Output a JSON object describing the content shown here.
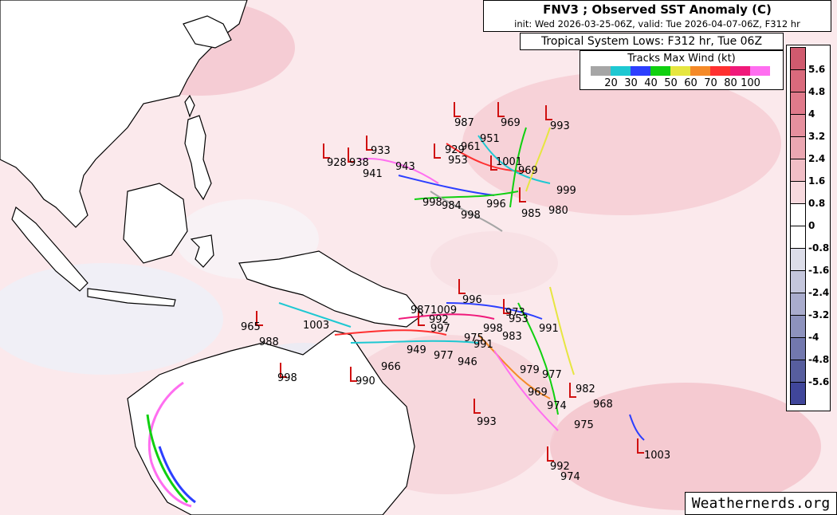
{
  "title": {
    "main": "FNV3 ; Observed SST Anomaly (C)",
    "sub": "init: Wed 2026-03-25-06Z, valid: Tue 2026-04-07-06Z, F312 hr"
  },
  "subtitle": "Tropical System Lows: F312 hr, Tue 06Z",
  "wind_legend": {
    "title": "Tracks Max Wind (kt)",
    "labels": [
      "20",
      "30",
      "40",
      "50",
      "60",
      "70",
      "80",
      "100"
    ],
    "colors": [
      "#a6a6a6",
      "#1ec8d2",
      "#2c3fff",
      "#10d010",
      "#e6e640",
      "#f58a28",
      "#ff3030",
      "#f0197a",
      "#ff6ef0"
    ]
  },
  "colorbar": {
    "labels": [
      "5.6",
      "4.8",
      "4",
      "3.2",
      "2.4",
      "1.6",
      "0.8",
      "0",
      "-0.8",
      "-1.6",
      "-2.4",
      "-3.2",
      "-4",
      "-4.8",
      "-5.6"
    ],
    "colors": [
      "#d05a6e",
      "#d96a7c",
      "#e07a8b",
      "#e6909e",
      "#eba7b2",
      "#f1bec6",
      "#f7d9de",
      "#ffffff",
      "#ffffff",
      "#dcdde9",
      "#c4c6dc",
      "#a9accd",
      "#8d92bd",
      "#7278ae",
      "#575e9e",
      "#40469a"
    ]
  },
  "credit": "Weathernerds.org",
  "pressure_labels": [
    "987",
    "969",
    "993",
    "951",
    "961",
    "929",
    "933",
    "928",
    "938",
    "941",
    "943",
    "953",
    "1001",
    "969",
    "999",
    "998",
    "984",
    "996",
    "985",
    "980",
    "998",
    "996",
    "987",
    "1009",
    "973",
    "992",
    "953",
    "991",
    "997",
    "998",
    "983",
    "965",
    "1003",
    "988",
    "975",
    "998",
    "966",
    "949",
    "977",
    "991",
    "946",
    "979",
    "977",
    "969",
    "974",
    "982",
    "968",
    "990",
    "993",
    "975",
    "992",
    "974",
    "1003"
  ]
}
